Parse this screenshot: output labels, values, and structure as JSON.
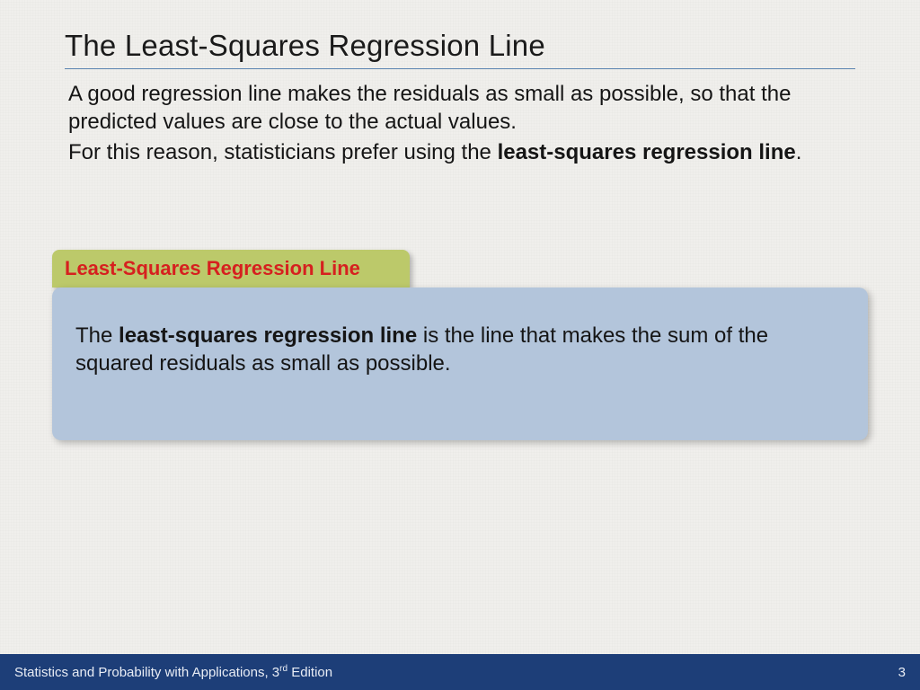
{
  "colors": {
    "background": "#f0efec",
    "title_rule": "#5b84b1",
    "tab_bg": "#bcc96a",
    "tab_text": "#d6201f",
    "def_box_bg": "#b3c5db",
    "footer_bg": "#1d3e78",
    "footer_text": "#e9edf5",
    "body_text": "#151515"
  },
  "fonts": {
    "title_size_pt": 25,
    "body_size_pt": 18,
    "tab_size_pt": 17,
    "footer_size_pt": 11
  },
  "title": "The Least-Squares Regression Line",
  "paragraphs": {
    "p1": "A good regression line makes the residuals as small as possible, so that the predicted values are close to the actual values.",
    "p2_pre": "For this reason, statisticians prefer using the ",
    "p2_bold": "least-squares regression line",
    "p2_post": "."
  },
  "tab_label": "Least-Squares Regression Line",
  "definition": {
    "pre": "The ",
    "bold": "least-squares regression line",
    "post": " is the line that makes the sum of the squared residuals as small as possible."
  },
  "footer": {
    "book_pre": "Statistics and Probability with Applications, 3",
    "book_sup": "rd",
    "book_post": " Edition",
    "page": "3"
  }
}
